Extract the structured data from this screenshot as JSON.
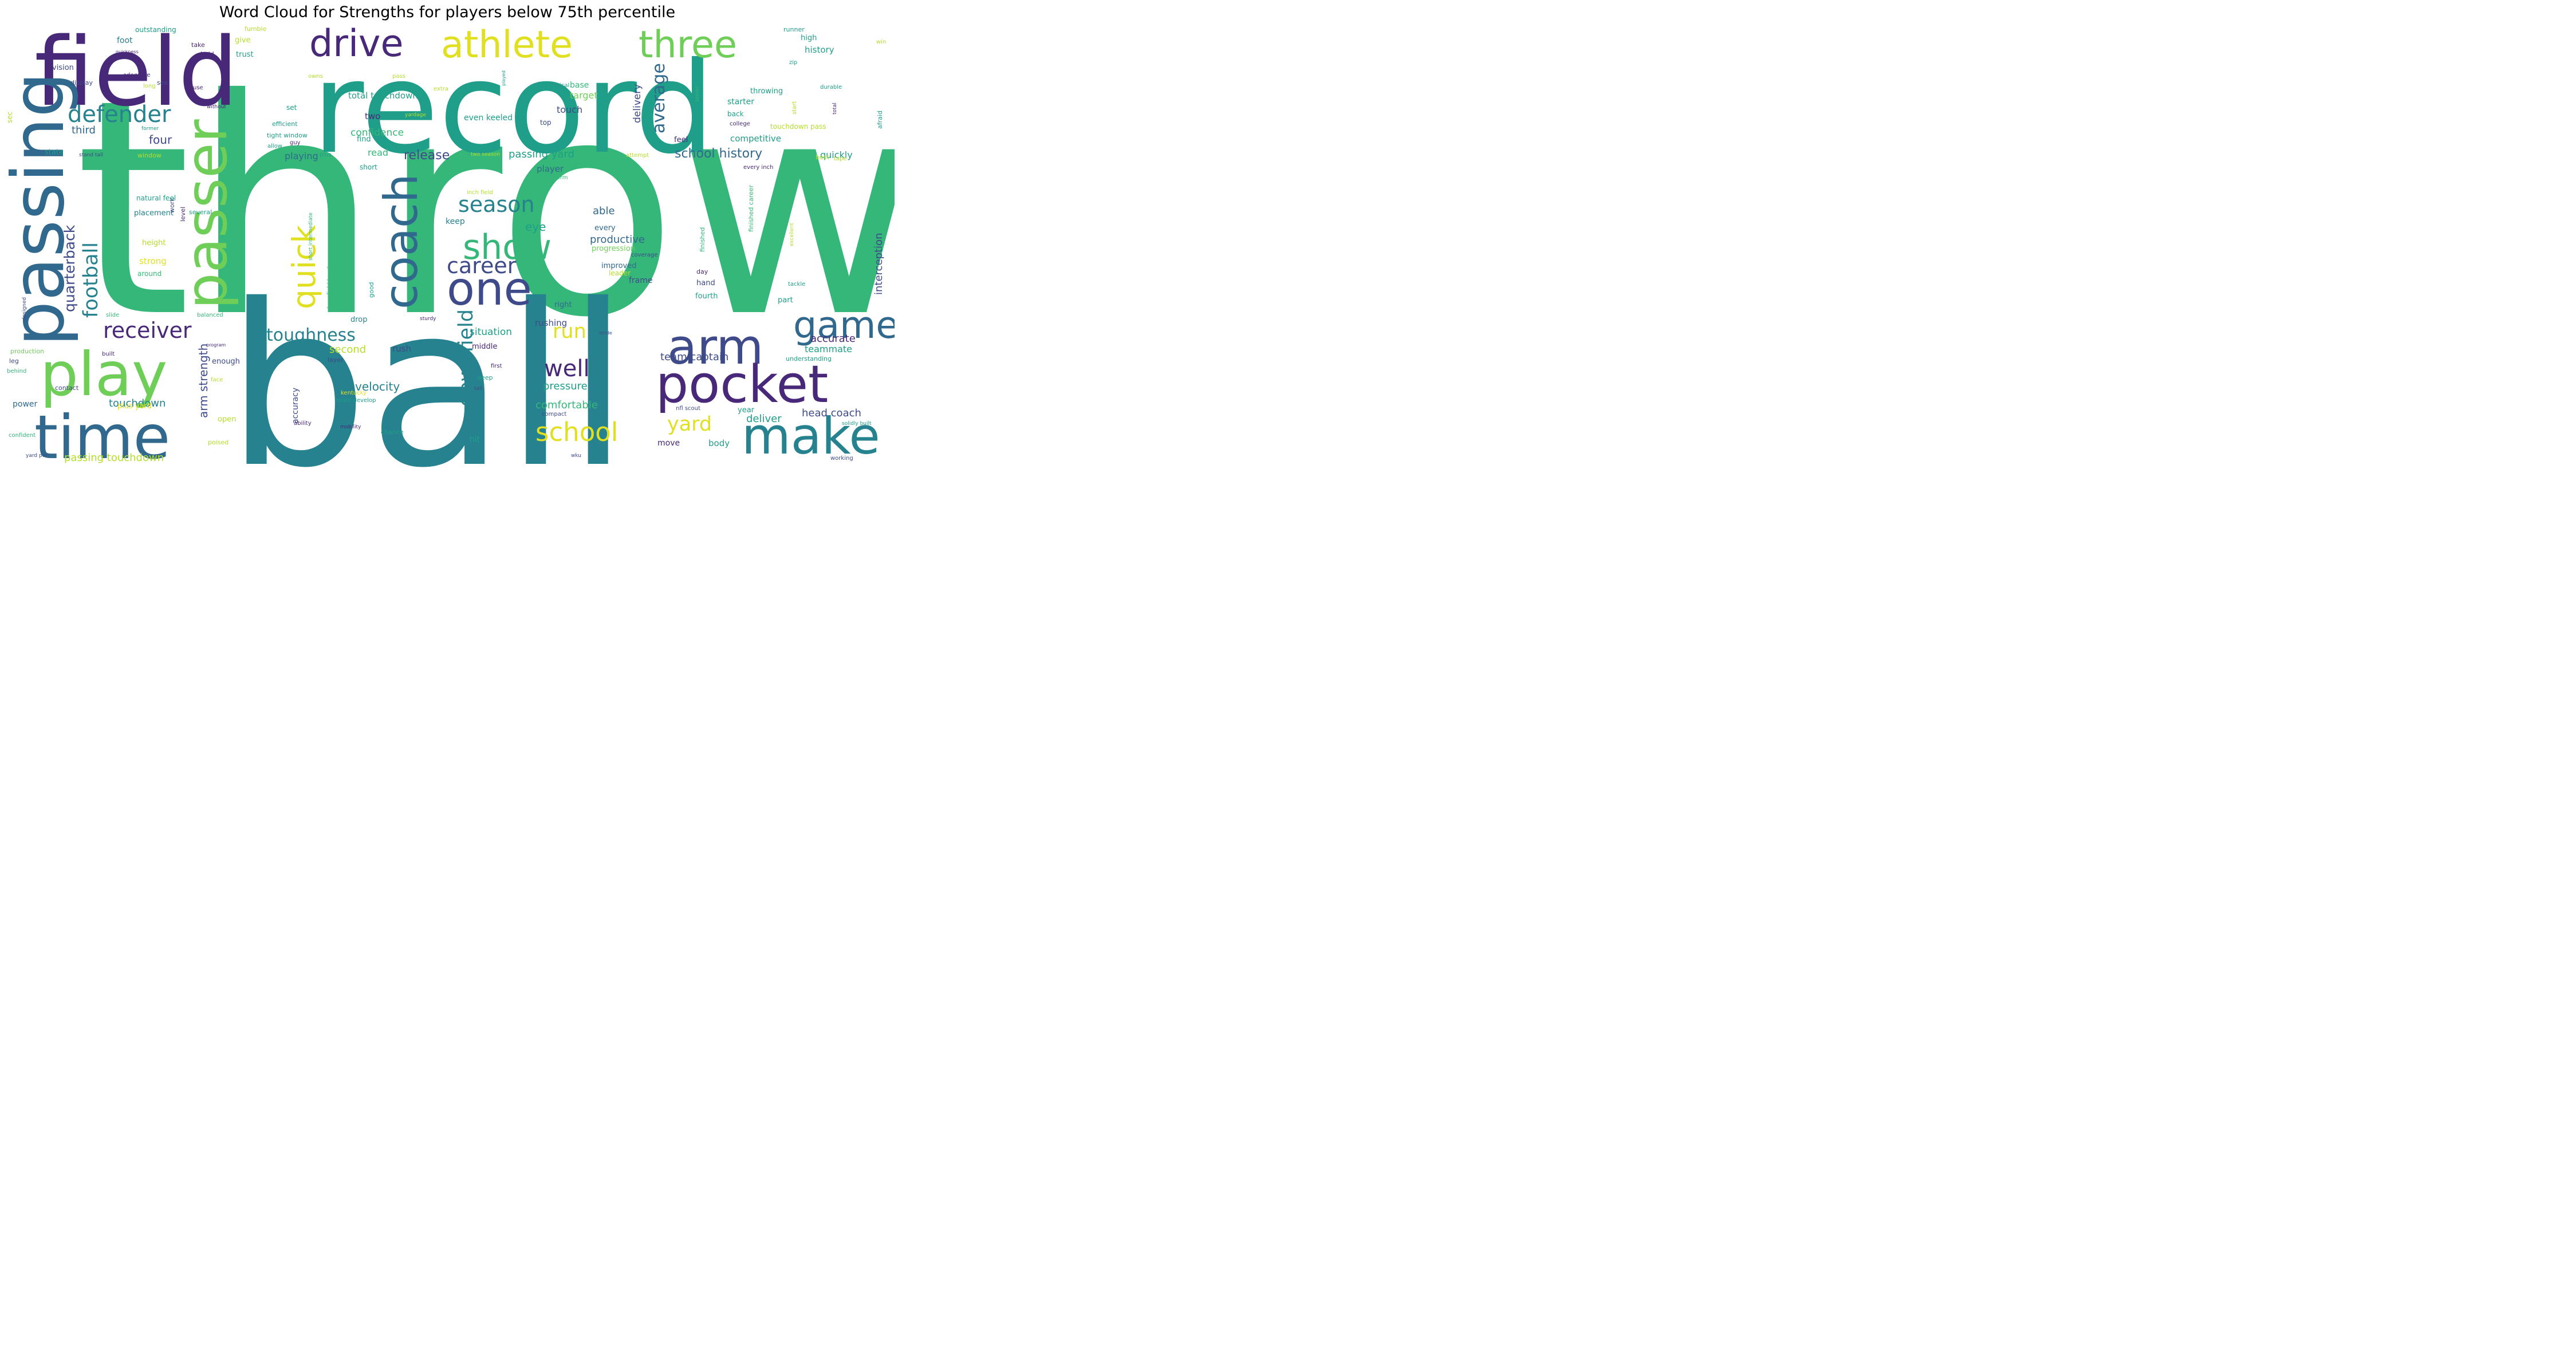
{
  "title": "Word Cloud for Strengths for players below 75th percentile",
  "palette": "viridis",
  "colors": {
    "background": "#ffffff",
    "dark_purple": "#482878",
    "indigo": "#3e4a89",
    "blue": "#31688e",
    "teal": "#26828e",
    "green_teal": "#1f9e89",
    "green": "#35b779",
    "light_green": "#6ece58",
    "lime": "#b5de2b",
    "yellow": "#e0e020"
  },
  "words": [
    "throw",
    "record",
    "ball",
    "field",
    "passing",
    "athlete",
    "three",
    "drive",
    "play",
    "passer",
    "coach",
    "time",
    "arm",
    "pocket",
    "make",
    "one",
    "game",
    "show",
    "quick",
    "school",
    "defender",
    "receiver",
    "football",
    "quarterback",
    "downfield",
    "season",
    "career",
    "average",
    "well",
    "run",
    "yard",
    "toughness",
    "arm strength",
    "release",
    "school history",
    "velocity",
    "touchdown",
    "passing yard",
    "passing touchdown",
    "interception",
    "productive",
    "comfortable",
    "pressure",
    "team captain",
    "head coach",
    "deliver",
    "accurate",
    "teammate",
    "competitive",
    "confidence",
    "delivery",
    "fbs",
    "touch",
    "target",
    "base",
    "four",
    "third",
    "foot",
    "outstanding",
    "total touchdown",
    "history",
    "high",
    "playing",
    "read",
    "two",
    "set",
    "efficient",
    "tight window",
    "even keeled",
    "player",
    "quickly",
    "eye",
    "able",
    "every",
    "progression",
    "improved",
    "frame",
    "hand",
    "fourth",
    "rushing",
    "situation",
    "rush",
    "second",
    "strong",
    "around",
    "height",
    "placement",
    "work",
    "level",
    "several",
    "plus yard",
    "power",
    "open",
    "keep",
    "right",
    "body",
    "move",
    "hit",
    "starter",
    "back",
    "college",
    "throwing",
    "find",
    "state",
    "vision",
    "display",
    "see",
    "take",
    "hold",
    "trust",
    "give",
    "fumble",
    "quickness",
    "adequate",
    "long",
    "use",
    "owns",
    "pass",
    "extra",
    "vertical",
    "top",
    "runner",
    "win",
    "zip",
    "start",
    "senior",
    "durable",
    "total",
    "afraid",
    "touchdown pass",
    "feel",
    "best",
    "tape",
    "every inch",
    "attempt",
    "two season",
    "platform",
    "inch field",
    "finished",
    "finished career",
    "excellent",
    "good",
    "downfield touch",
    "short intermediate",
    "coverage",
    "leader",
    "day",
    "tackle",
    "part",
    "understanding",
    "enough",
    "natural feel",
    "size",
    "slide",
    "balanced",
    "sturdy",
    "stride",
    "program",
    "built",
    "production",
    "leg",
    "behind",
    "layer",
    "middle",
    "first",
    "deep",
    "tall",
    "contact",
    "kentucky",
    "route develop",
    "accuracy",
    "ability",
    "compact",
    "us",
    "nfl scout",
    "year",
    "solidly built",
    "confident",
    "yard per",
    "poised",
    "mobility",
    "chance",
    "wku",
    "working",
    "sec",
    "without",
    "former",
    "window",
    "stand tall",
    "allow",
    "guy",
    "plus",
    "short",
    "designed",
    "yardage",
    "face",
    "drop",
    "played",
    "team",
    "rank"
  ]
}
